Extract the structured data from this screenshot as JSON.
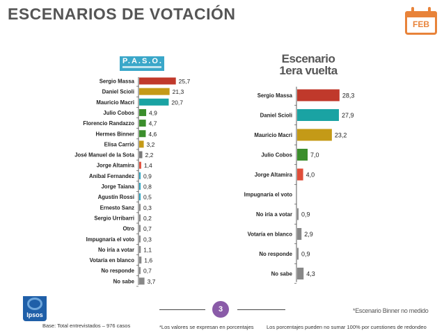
{
  "page": {
    "title": "ESCENARIOS DE VOTACIÓN",
    "month_badge": "FEB"
  },
  "paso_logo": {
    "label": "P.A.S.O."
  },
  "chart_data": [
    {
      "type": "bar",
      "title": "P.A.S.O.",
      "categories": [
        "Sergio Massa",
        "Daniel Scioli",
        "Mauricio Macri",
        "Julio Cobos",
        "Florencio Randazzo",
        "Hermes Binner",
        "Elisa Carrió",
        "José Manuel de la Sota",
        "Jorge Altamira",
        "Aníbal Fernandez",
        "Jorge Taiana",
        "Agustín Rossi",
        "Ernesto Sanz",
        "Sergio Urribarri",
        "Otro",
        "Impugnaría el voto",
        "No iría a votar",
        "Votaría en blanco",
        "No responde",
        "No sabe"
      ],
      "values": [
        25.7,
        21.3,
        20.7,
        4.9,
        4.7,
        4.6,
        3.2,
        2.2,
        1.4,
        0.9,
        0.8,
        0.5,
        0.3,
        0.2,
        0.7,
        0.3,
        1.1,
        1.6,
        0.7,
        3.7
      ],
      "value_labels": [
        "25,7",
        "21,3",
        "20,7",
        "4,9",
        "4,7",
        "4,6",
        "3,2",
        "2,2",
        "1,4",
        "0,9",
        "0,8",
        "0,5",
        "0,3",
        "0,2",
        "0,7",
        "0,3",
        "1,1",
        "1,6",
        "0,7",
        "3,7"
      ],
      "colors": [
        "#c0392b",
        "#c49a17",
        "#1aa3a3",
        "#3b8e2c",
        "#3b8e2c",
        "#3b8e2c",
        "#c49a17",
        "#7a7a7a",
        "#e04e3a",
        "#2aa3c0",
        "#2aa3c0",
        "#2aa3c0",
        "#888888",
        "#888888",
        "#888888",
        "#888888",
        "#888888",
        "#888888",
        "#888888",
        "#888888"
      ],
      "orientation": "horizontal"
    },
    {
      "type": "bar",
      "title": "Escenario 1era vuelta",
      "categories": [
        "Sergio Massa",
        "Daniel Scioli",
        "Mauricio Macri",
        "Julio Cobos",
        "Jorge Altamira",
        "Impugnaría el voto",
        "No iría a votar",
        "Votaría en blanco",
        "No responde",
        "No sabe"
      ],
      "values": [
        28.3,
        27.9,
        23.2,
        7.0,
        4.0,
        0,
        0.9,
        2.9,
        0.9,
        4.3
      ],
      "value_labels": [
        "28,3",
        "27,9",
        "23,2",
        "7,0",
        "4,0",
        "",
        "0,9",
        "2,9",
        "0,9",
        "4,3"
      ],
      "colors": [
        "#c0392b",
        "#1aa3a3",
        "#c49a17",
        "#3b8e2c",
        "#e04e3a",
        "#888888",
        "#888888",
        "#888888",
        "#888888",
        "#888888"
      ],
      "orientation": "horizontal"
    }
  ],
  "escenario_title_line1": "Escenario",
  "escenario_title_line2": "1era vuelta",
  "footer": {
    "page_number": "3",
    "base": "Base: Total entrevistados – 976 casos",
    "note_values": "*Los valores se expresan en porcentajes",
    "note_rounding": "Los porcentajes pueden no sumar 100% por cuestiones de redondeo",
    "binner_note": "*Escenario Binner no medido",
    "logo_text": "Ipsos"
  }
}
